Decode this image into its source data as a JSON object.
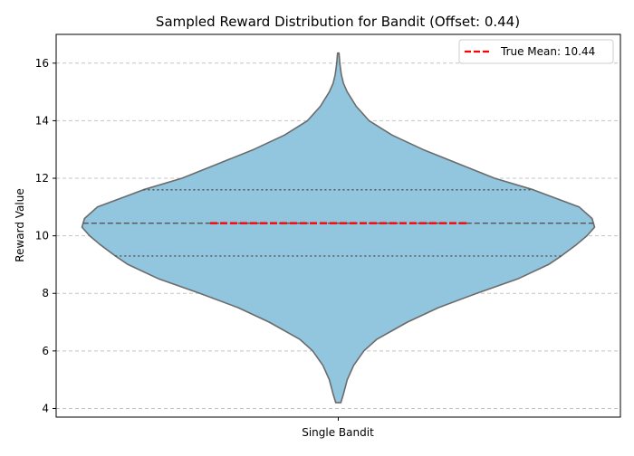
{
  "chart_data": {
    "type": "violin",
    "title": "Sampled Reward Distribution for Bandit (Offset: 0.44)",
    "xlabel": "",
    "ylabel": "Reward Value",
    "categories": [
      "Single Bandit"
    ],
    "ylim": [
      3.7,
      17.0
    ],
    "yticks": [
      4,
      6,
      8,
      10,
      12,
      14,
      16
    ],
    "grid": "horizontal-dashed",
    "legend_position": "top-right",
    "legend": [
      {
        "label": "True Mean: 10.44",
        "color": "#ff0000",
        "style": "dashed"
      }
    ],
    "violin": {
      "fill": "#92c5de",
      "edge": "#6b6b6b",
      "quartiles": {
        "q1": 9.3,
        "median": 10.44,
        "q3": 11.6
      },
      "true_mean": 10.44,
      "profile": [
        [
          4.2,
          0.01
        ],
        [
          4.5,
          0.02
        ],
        [
          5.0,
          0.035
        ],
        [
          5.5,
          0.06
        ],
        [
          6.0,
          0.1
        ],
        [
          6.4,
          0.15
        ],
        [
          7.0,
          0.27
        ],
        [
          7.5,
          0.39
        ],
        [
          8.0,
          0.54
        ],
        [
          8.5,
          0.7
        ],
        [
          9.0,
          0.82
        ],
        [
          9.3,
          0.87
        ],
        [
          9.7,
          0.93
        ],
        [
          10.0,
          0.97
        ],
        [
          10.3,
          1.0
        ],
        [
          10.6,
          0.99
        ],
        [
          11.0,
          0.94
        ],
        [
          11.3,
          0.85
        ],
        [
          11.6,
          0.76
        ],
        [
          12.0,
          0.61
        ],
        [
          12.5,
          0.47
        ],
        [
          13.0,
          0.33
        ],
        [
          13.5,
          0.21
        ],
        [
          14.0,
          0.12
        ],
        [
          14.5,
          0.07
        ],
        [
          15.0,
          0.035
        ],
        [
          15.3,
          0.02
        ],
        [
          15.6,
          0.012
        ],
        [
          16.0,
          0.006
        ],
        [
          16.35,
          0.003
        ]
      ]
    }
  }
}
